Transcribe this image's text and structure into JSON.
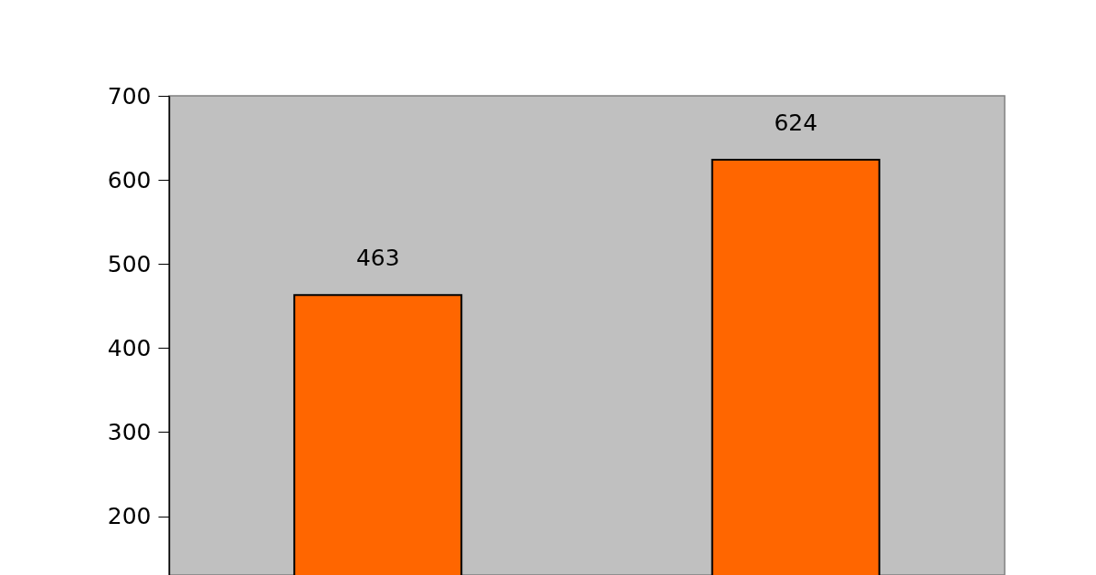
{
  "chart_data": {
    "type": "bar",
    "categories": [
      null,
      null
    ],
    "values": [
      463,
      624
    ],
    "color": "#ff6600",
    "ylim": [
      130,
      700
    ],
    "yticks": [
      200,
      300,
      400,
      500,
      600,
      700
    ],
    "data_labels": true,
    "grid": false,
    "tick_labels": "y"
  }
}
